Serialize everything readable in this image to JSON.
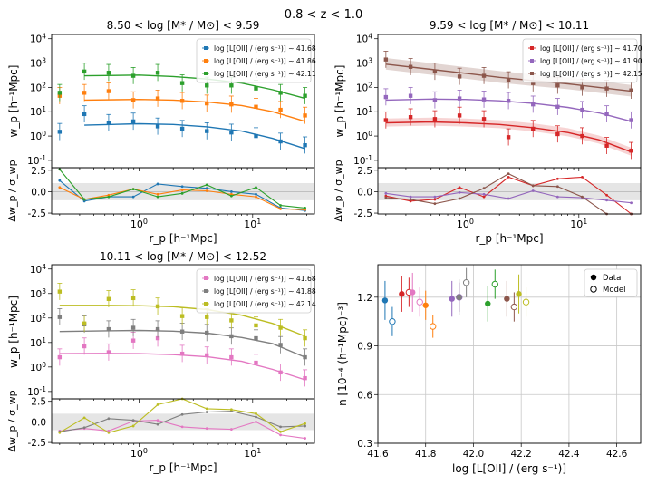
{
  "figure": {
    "suptitle": "0.8 < z < 1.0"
  },
  "chart_data": [
    {
      "type": "line",
      "panel": "top-left",
      "title": "8.50 < log [M* / M⊙] < 9.59",
      "xlabel": "r_p [h⁻¹Mpc]",
      "ylabel": "w_p [h⁻¹Mpc]",
      "resid_ylabel": "Δw_p / σ_wp",
      "xscale": "log",
      "yscale": "log",
      "xlim": [
        0.17,
        35
      ],
      "ylim": [
        0.05,
        15000
      ],
      "resid_ylim": [
        -2.6,
        2.8
      ],
      "legend_position": "top-right",
      "series": [
        {
          "name": "log [L[OII] / (erg s⁻¹)] ~ 41.68",
          "color": "#1f77b4",
          "x": [
            0.2,
            0.33,
            0.54,
            0.89,
            1.46,
            2.4,
            3.95,
            6.5,
            10.7,
            17.6,
            28.9
          ],
          "y": [
            1.5,
            8,
            3.5,
            4,
            2.5,
            2.0,
            1.6,
            1.4,
            1.0,
            0.6,
            0.42
          ],
          "model_x": [
            0.33,
            1.0,
            2.0,
            4.0,
            8.0,
            15.0,
            29.0
          ],
          "model_y": [
            2.8,
            3.2,
            3.0,
            2.4,
            1.6,
            0.8,
            0.3
          ],
          "resid": [
            1.3,
            -1.1,
            -0.6,
            -0.6,
            0.9,
            0.6,
            0.4,
            0.0,
            -0.3,
            -1.9,
            -2.2
          ]
        },
        {
          "name": "log [L[OII] / (erg s⁻¹)] ~ 41.86",
          "color": "#ff7f0e",
          "x": [
            0.2,
            0.33,
            0.54,
            0.89,
            1.46,
            2.4,
            3.95,
            6.5,
            10.7,
            17.6,
            28.9
          ],
          "y": [
            45,
            60,
            70,
            30,
            35,
            28,
            22,
            20,
            16,
            12,
            7
          ],
          "model_x": [
            0.33,
            1.0,
            2.0,
            4.0,
            8.0,
            15.0,
            29.0
          ],
          "model_y": [
            30,
            32,
            30,
            25,
            18,
            10,
            4
          ],
          "resid": [
            0.5,
            -0.9,
            -0.4,
            0.3,
            -0.3,
            0.2,
            0.1,
            -0.3,
            -0.6,
            -2.0,
            -2.1
          ]
        },
        {
          "name": "log [L[OII] / (erg s⁻¹)] ~ 42.11",
          "color": "#2ca02c",
          "x": [
            0.2,
            0.33,
            0.54,
            0.89,
            1.46,
            2.4,
            3.95,
            6.5,
            10.7,
            17.6,
            28.9
          ],
          "y": [
            60,
            450,
            400,
            300,
            400,
            150,
            120,
            120,
            90,
            60,
            45
          ],
          "model_x": [
            0.33,
            1.0,
            2.0,
            4.0,
            8.0,
            15.0,
            29.0
          ],
          "model_y": [
            300,
            320,
            280,
            220,
            150,
            80,
            35
          ],
          "resid": [
            2.6,
            -0.9,
            -0.6,
            0.3,
            -0.6,
            -0.2,
            0.8,
            -0.5,
            0.5,
            -1.6,
            -1.9
          ]
        }
      ]
    },
    {
      "type": "line",
      "panel": "top-right",
      "title": "9.59 < log [M* / M⊙] < 10.11",
      "xlabel": "r_p [h⁻¹Mpc]",
      "ylabel": "w_p [h⁻¹Mpc]",
      "resid_ylabel": "Δw_p / σ_wp",
      "xscale": "log",
      "yscale": "log",
      "xlim": [
        0.17,
        35
      ],
      "ylim": [
        0.05,
        15000
      ],
      "resid_ylim": [
        -2.6,
        2.8
      ],
      "legend_position": "top-right",
      "series": [
        {
          "name": "log [L[OII] / (erg s⁻¹)] ~ 41.70",
          "color": "#d62728",
          "x": [
            0.2,
            0.33,
            0.54,
            0.89,
            1.46,
            2.4,
            3.95,
            6.5,
            10.7,
            17.6,
            28.9
          ],
          "y": [
            4.5,
            6,
            5,
            7,
            5,
            0.9,
            2.0,
            1.2,
            1.0,
            0.4,
            0.25
          ],
          "model_x": [
            0.2,
            0.5,
            1.0,
            2.0,
            4.0,
            8.0,
            15.0,
            29.0
          ],
          "model_y": [
            3.5,
            3.8,
            3.5,
            3.0,
            2.2,
            1.4,
            0.7,
            0.22
          ],
          "resid": [
            -0.5,
            -1.1,
            -0.9,
            0.5,
            -0.6,
            1.7,
            0.7,
            1.5,
            1.7,
            -0.4,
            -2.7
          ]
        },
        {
          "name": "log [L[OII] / (erg s⁻¹)] ~ 41.90",
          "color": "#9467bd",
          "x": [
            0.2,
            0.33,
            0.54,
            0.89,
            1.46,
            2.4,
            3.95,
            6.5,
            10.7,
            17.6,
            28.9
          ],
          "y": [
            40,
            45,
            30,
            35,
            32,
            28,
            20,
            16,
            12,
            8,
            4.5
          ],
          "model_x": [
            0.2,
            0.5,
            1.0,
            2.0,
            4.0,
            8.0,
            15.0,
            29.0
          ],
          "model_y": [
            30,
            33,
            32,
            28,
            22,
            15,
            9,
            4
          ],
          "resid": [
            -0.2,
            -0.6,
            -0.6,
            -0.1,
            -0.3,
            -0.8,
            0.1,
            -0.6,
            -0.7,
            -1.0,
            -1.3
          ]
        },
        {
          "name": "log [L[OII] / (erg s⁻¹)] ~ 42.15",
          "color": "#8c564b",
          "x": [
            0.2,
            0.33,
            0.54,
            0.89,
            1.46,
            2.4,
            3.95,
            6.5,
            10.7,
            17.6,
            28.9
          ],
          "y": [
            1400,
            700,
            450,
            280,
            300,
            200,
            150,
            120,
            100,
            90,
            75
          ],
          "model_x": [
            0.2,
            0.5,
            1.0,
            2.0,
            4.0,
            8.0,
            15.0,
            29.0
          ],
          "model_y": [
            900,
            550,
            380,
            260,
            190,
            140,
            100,
            70
          ],
          "resid": [
            -0.7,
            -0.9,
            -1.4,
            -0.8,
            0.4,
            2.1,
            0.7,
            0.6,
            -0.6,
            -2.9,
            -3.5
          ]
        }
      ]
    },
    {
      "type": "line",
      "panel": "bottom-left",
      "title": "10.11 < log [M* / M⊙] < 12.52",
      "xlabel": "r_p [h⁻¹Mpc]",
      "ylabel": "w_p [h⁻¹Mpc]",
      "resid_ylabel": "Δw_p / σ_wp",
      "xscale": "log",
      "yscale": "log",
      "xlim": [
        0.17,
        35
      ],
      "ylim": [
        0.05,
        15000
      ],
      "resid_ylim": [
        -2.6,
        2.8
      ],
      "legend_position": "top-right",
      "series": [
        {
          "name": "log [L[OII] / (erg s⁻¹)] ~ 41.68",
          "color": "#e377c2",
          "x": [
            0.2,
            0.33,
            0.54,
            0.89,
            1.46,
            2.4,
            3.95,
            6.5,
            10.7,
            17.6,
            28.9
          ],
          "y": [
            2.5,
            7,
            4,
            12,
            15,
            3.5,
            3.0,
            2.5,
            1.5,
            0.6,
            0.35
          ],
          "model_x": [
            0.2,
            0.5,
            1.0,
            2.0,
            4.0,
            8.0,
            15.0,
            29.0
          ],
          "model_y": [
            3.5,
            3.6,
            3.5,
            3.2,
            2.6,
            1.7,
            0.8,
            0.3
          ],
          "resid": [
            -1.1,
            -0.8,
            -1.1,
            0.1,
            0.2,
            -0.6,
            -0.8,
            -0.9,
            0.0,
            -1.6,
            -2.0
          ]
        },
        {
          "name": "log [L[OII] / (erg s⁻¹)] ~ 41.88",
          "color": "#7f7f7f",
          "x": [
            0.2,
            0.33,
            0.54,
            0.89,
            1.46,
            2.4,
            3.95,
            6.5,
            10.7,
            17.6,
            28.9
          ],
          "y": [
            110,
            55,
            35,
            40,
            35,
            28,
            25,
            18,
            15,
            8,
            2.5
          ],
          "model_x": [
            0.2,
            0.5,
            1.0,
            2.0,
            4.0,
            8.0,
            15.0,
            29.0
          ],
          "model_y": [
            28,
            30,
            31,
            29,
            24,
            16,
            9,
            2.5
          ],
          "resid": [
            -1.2,
            -0.7,
            0.4,
            0.2,
            -0.3,
            0.9,
            1.2,
            1.3,
            0.6,
            -0.6,
            -0.5
          ]
        },
        {
          "name": "log [L[OII] / (erg s⁻¹)] ~ 42.14",
          "color": "#bcbd22",
          "x": [
            0.2,
            0.33,
            0.54,
            0.89,
            1.46,
            2.4,
            3.95,
            6.5,
            10.7,
            17.6,
            28.9
          ],
          "y": [
            1200,
            60,
            600,
            650,
            300,
            120,
            110,
            80,
            50,
            40,
            15
          ],
          "model_x": [
            0.2,
            0.5,
            1.0,
            2.0,
            4.0,
            8.0,
            15.0,
            29.0
          ],
          "model_y": [
            330,
            330,
            320,
            290,
            220,
            130,
            60,
            18
          ],
          "resid": [
            -1.3,
            0.5,
            -1.3,
            -0.5,
            2.1,
            2.8,
            1.6,
            1.5,
            1.0,
            -1.2,
            -0.2
          ]
        }
      ]
    },
    {
      "type": "scatter",
      "panel": "bottom-right",
      "xlabel": "log [L[OII] / (erg s⁻¹)]",
      "ylabel": "n [10⁻⁴ (h⁻¹Mpc)⁻³]",
      "xlim": [
        41.6,
        42.7
      ],
      "ylim": [
        0.3,
        1.4
      ],
      "xticks": [
        "41.6",
        "41.8",
        "42.0",
        "42.2",
        "42.4",
        "42.6"
      ],
      "yticks": [
        "0.3",
        "0.6",
        "0.9",
        "1.2"
      ],
      "grid": true,
      "legend_position": "top-right",
      "legend": [
        "Data",
        "Model"
      ],
      "points": [
        {
          "color": "#1f77b4",
          "x": 41.63,
          "data": 1.18,
          "data_err": 0.12,
          "model": 1.05,
          "model_err": 0.09
        },
        {
          "color": "#d62728",
          "x": 41.7,
          "data": 1.22,
          "data_err": 0.11,
          "model": 1.23,
          "model_err": 0.09
        },
        {
          "color": "#e377c2",
          "x": 41.745,
          "data": 1.23,
          "data_err": 0.12,
          "model": 1.17,
          "model_err": 0.09
        },
        {
          "color": "#ff7f0e",
          "x": 41.8,
          "data": 1.15,
          "data_err": 0.09,
          "model": 1.02,
          "model_err": 0.07
        },
        {
          "color": "#9467bd",
          "x": 41.91,
          "data": 1.19,
          "data_err": 0.11,
          "model": 1.2,
          "model_err": 0.09
        },
        {
          "color": "#7f7f7f",
          "x": 41.94,
          "data": 1.2,
          "data_err": 0.11,
          "model": 1.29,
          "model_err": 0.09
        },
        {
          "color": "#2ca02c",
          "x": 42.06,
          "data": 1.16,
          "data_err": 0.11,
          "model": 1.28,
          "model_err": 0.09
        },
        {
          "color": "#8c564b",
          "x": 42.14,
          "data": 1.19,
          "data_err": 0.11,
          "model": 1.14,
          "model_err": 0.09
        },
        {
          "color": "#bcbd22",
          "x": 42.19,
          "data": 1.22,
          "data_err": 0.12,
          "model": 1.17,
          "model_err": 0.09
        }
      ]
    }
  ]
}
